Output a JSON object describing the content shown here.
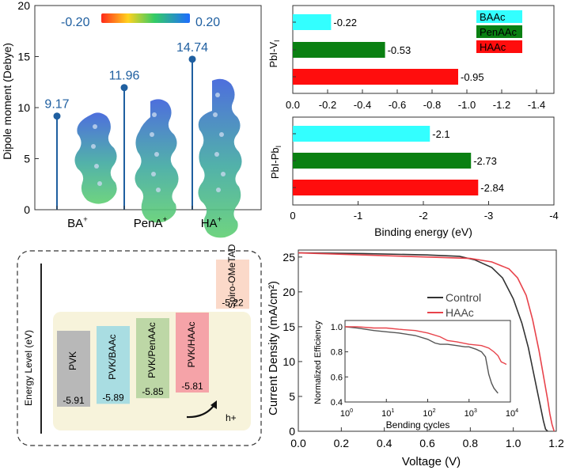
{
  "chart_data": [
    {
      "panel": "dipole",
      "type": "lollipop",
      "ylabel": "Dipole moment (Debye)",
      "ylim": [
        0,
        20
      ],
      "yticks": [
        0,
        5,
        10,
        15,
        20
      ],
      "categories": [
        "BA+",
        "PenA+",
        "HA+"
      ],
      "category_labels": [
        {
          "base": "BA",
          "sup": "+"
        },
        {
          "base": "PenA",
          "sup": "+"
        },
        {
          "base": "HA",
          "sup": "+"
        }
      ],
      "values": [
        9.17,
        11.96,
        14.74
      ],
      "value_labels": [
        "9.17",
        "11.96",
        "14.74"
      ],
      "colorbar": {
        "min_label": "-0.20",
        "max_label": "0.20",
        "colors": [
          "#ff2a1a",
          "#ffd21f",
          "#33cc66",
          "#1e6cff"
        ]
      },
      "stem_color": "#1f5fa0",
      "value_color": "#1f5fa0"
    },
    {
      "panel": "binding-vi",
      "type": "bar",
      "orientation": "horizontal",
      "ylabel": {
        "base": "PbI-V",
        "sub": "I"
      },
      "xlim": [
        0,
        -1.5
      ],
      "xticks": [
        0.0,
        -0.2,
        -0.4,
        -0.6,
        -0.8,
        -1.0,
        -1.2,
        -1.4
      ],
      "xtick_labels": [
        "0.0",
        "-0.2",
        "-0.4",
        "-0.6",
        "-0.8",
        "-1.0",
        "-1.2",
        "-1.4"
      ],
      "series": [
        {
          "name": "BAAc",
          "value": -0.22,
          "label": "-0.22",
          "color": "#33ffff"
        },
        {
          "name": "PenAAc",
          "value": -0.53,
          "label": "-0.53",
          "color": "#0a8012"
        },
        {
          "name": "HAAc",
          "value": -0.95,
          "label": "-0.95",
          "color": "#ff0d0d"
        }
      ],
      "legend": [
        "BAAc",
        "PenAAc",
        "HAAc"
      ],
      "legend_position": "top-right"
    },
    {
      "panel": "binding-pbi",
      "type": "bar",
      "orientation": "horizontal",
      "ylabel": {
        "base": "PbI-Pb",
        "sub": "I"
      },
      "xlabel": "Binding energy (eV)",
      "xlim": [
        0,
        -4
      ],
      "xticks": [
        0,
        -1,
        -2,
        -3,
        -4
      ],
      "xtick_labels": [
        "0",
        "-1",
        "-2",
        "-3",
        "-4"
      ],
      "series": [
        {
          "name": "BAAc",
          "value": -2.1,
          "label": "-2.1",
          "color": "#33ffff"
        },
        {
          "name": "PenAAc",
          "value": -2.73,
          "label": "-2.73",
          "color": "#0a8012"
        },
        {
          "name": "HAAc",
          "value": -2.84,
          "label": "-2.84",
          "color": "#ff0d0d"
        }
      ]
    },
    {
      "panel": "energy-level",
      "type": "diagram",
      "axis_label": "Energy Level  (eV)",
      "levels": [
        {
          "name": "PVK",
          "value": -5.91,
          "label": "-5.91",
          "color": "#b8b8b8"
        },
        {
          "name": "PVK/BAAc",
          "value": -5.89,
          "label": "-5.89",
          "color": "#a9dde2"
        },
        {
          "name": "PVK/PenAAc",
          "value": -5.85,
          "label": "-5.85",
          "color": "#bdd7a6"
        },
        {
          "name": "PVK/HAAc",
          "value": -5.81,
          "label": "-5.81",
          "color": "#f5a3a8"
        },
        {
          "name": "Spiro-OMeTAD",
          "value": -5.22,
          "label": "-5.22",
          "color": "#fbd9c9"
        }
      ],
      "arrow_label": "h+"
    },
    {
      "panel": "jv-curve",
      "type": "line",
      "xlabel": "Voltage (V)",
      "ylabel": "Current Density (mA/cm²)",
      "xlim": [
        0.0,
        1.2
      ],
      "ylim": [
        0,
        26
      ],
      "xticks": [
        0.0,
        0.2,
        0.4,
        0.6,
        0.8,
        1.0,
        1.2
      ],
      "xtick_labels": [
        "0.0",
        "0.2",
        "0.4",
        "0.6",
        "0.8",
        "1.0",
        "1.2"
      ],
      "yticks": [
        0,
        5,
        10,
        15,
        20,
        25
      ],
      "series": [
        {
          "name": "Control",
          "color": "#333333",
          "x": [
            0.0,
            0.3,
            0.6,
            0.75,
            0.82,
            0.9,
            0.95,
            1.0,
            1.04,
            1.07,
            1.09,
            1.11,
            1.12,
            1.13,
            1.14,
            1.15,
            1.16
          ],
          "y": [
            25.6,
            25.5,
            25.3,
            25.1,
            24.6,
            23.5,
            22.0,
            19.0,
            15.5,
            12.0,
            9.0,
            6.0,
            4.5,
            3.0,
            1.5,
            0.3,
            0.0
          ]
        },
        {
          "name": "HAAc",
          "color": "#e8434b",
          "x": [
            0.0,
            0.2,
            0.4,
            0.6,
            0.8,
            0.9,
            0.98,
            1.02,
            1.06,
            1.09,
            1.12,
            1.14,
            1.16,
            1.17,
            1.18,
            1.19
          ],
          "y": [
            25.6,
            25.4,
            25.2,
            25.0,
            24.8,
            24.3,
            23.3,
            22.0,
            19.5,
            16.0,
            11.5,
            8.0,
            4.5,
            2.5,
            1.0,
            0.0
          ]
        }
      ],
      "inset": {
        "type": "line",
        "xlabel": "Bending cycles",
        "ylabel": "Normalized Efficiency",
        "xscale": "log",
        "xlim": [
          1,
          10000
        ],
        "ylim": [
          0.4,
          1.05
        ],
        "ytick_labels": [
          "0.4",
          "0.6",
          "0.8",
          "1.0"
        ],
        "yticks": [
          0.4,
          0.6,
          0.8,
          1.0
        ],
        "xtick_labels": [
          {
            "base": "10",
            "sup": "0"
          },
          {
            "base": "10",
            "sup": "1"
          },
          {
            "base": "10",
            "sup": "2"
          },
          {
            "base": "10",
            "sup": "3"
          },
          {
            "base": "10",
            "sup": "4"
          }
        ],
        "xticks": [
          1,
          10,
          100,
          1000,
          10000
        ],
        "series": [
          {
            "name": "Control",
            "color": "#555555",
            "x": [
              1,
              2,
              5,
              10,
              20,
              50,
              100,
              150,
              200,
              300,
              500,
              800,
              1000,
              1500,
              2000,
              2500,
              3000,
              3500,
              4000,
              5000
            ],
            "y": [
              1.0,
              0.99,
              0.97,
              0.96,
              0.95,
              0.93,
              0.9,
              0.87,
              0.86,
              0.86,
              0.85,
              0.84,
              0.84,
              0.82,
              0.8,
              0.76,
              0.62,
              0.55,
              0.51,
              0.47
            ]
          },
          {
            "name": "HAAc",
            "color": "#e8434b",
            "x": [
              1,
              2,
              5,
              10,
              20,
              50,
              100,
              200,
              300,
              500,
              1000,
              2000,
              3000,
              4000,
              5000,
              6000,
              7000,
              8000
            ],
            "y": [
              1.0,
              1.0,
              0.99,
              0.99,
              0.98,
              0.97,
              0.95,
              0.92,
              0.89,
              0.88,
              0.86,
              0.85,
              0.83,
              0.8,
              0.77,
              0.72,
              0.71,
              0.7
            ]
          }
        ]
      },
      "legend": [
        "Control",
        "HAAc"
      ],
      "legend_position": "upper-middle"
    }
  ]
}
